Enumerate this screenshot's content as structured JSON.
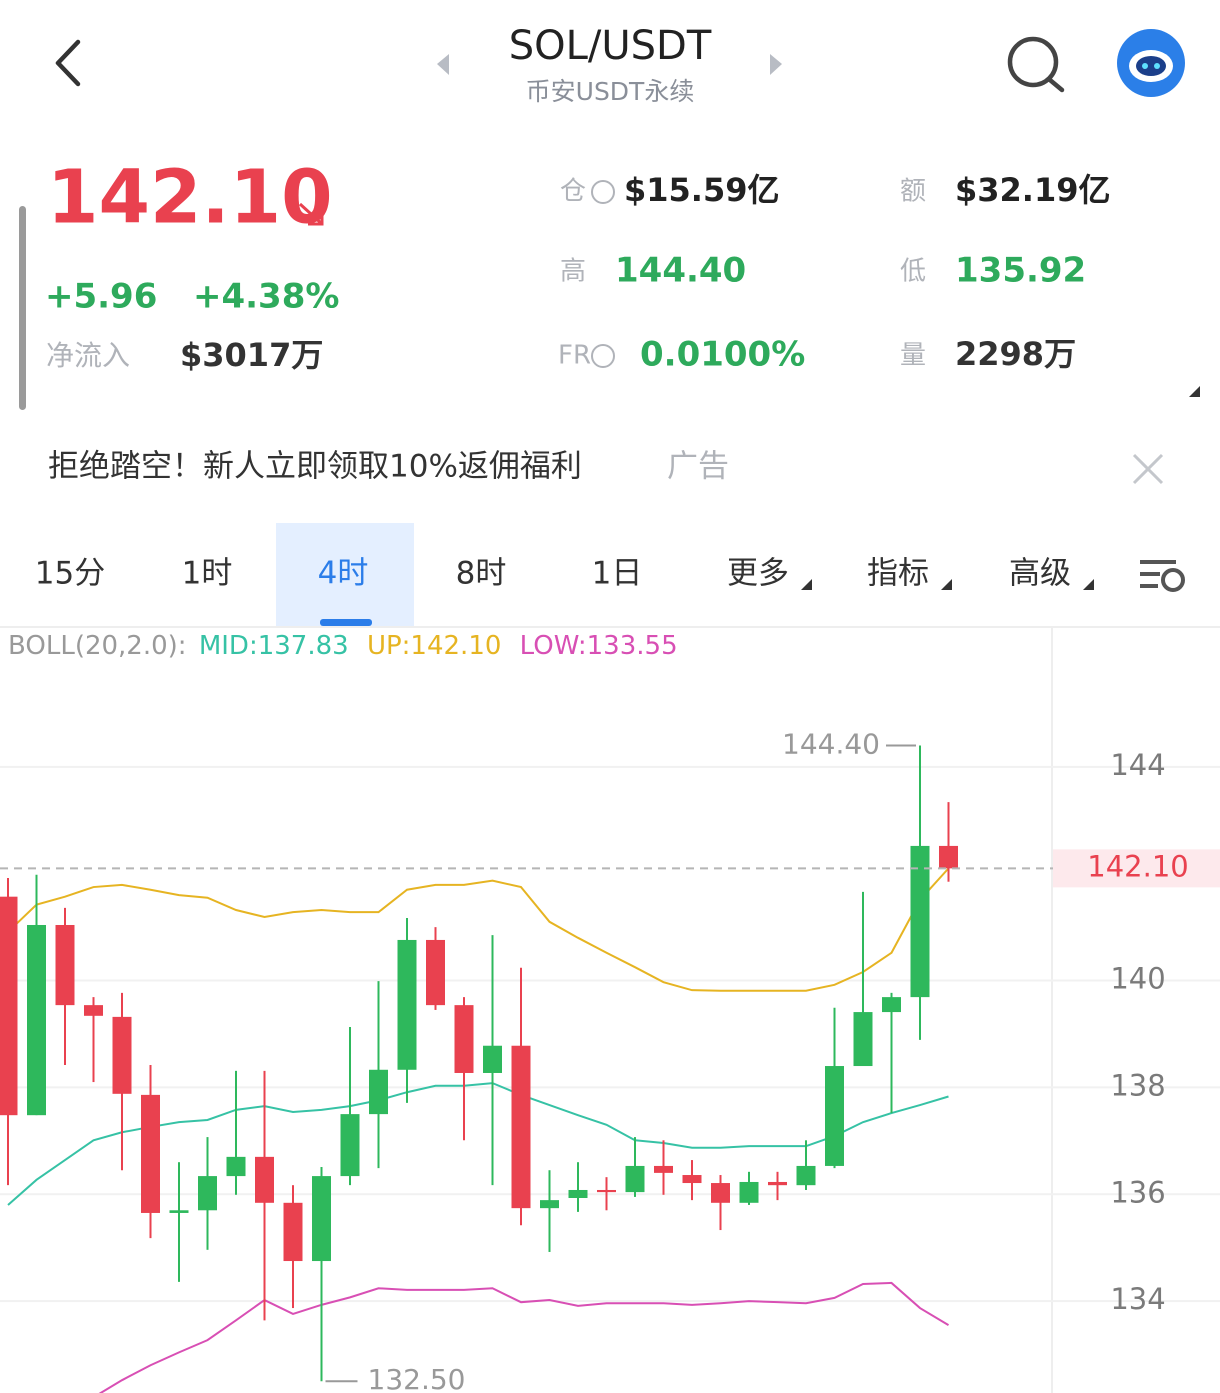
{
  "header": {
    "title": "SOL/USDT",
    "subtitle": "币安USDT永续"
  },
  "ticker": {
    "price": "142.10",
    "change": "+5.96",
    "change_pct": "+4.38%",
    "inflow_label": "净流入",
    "inflow": "$3017万"
  },
  "stats": [
    {
      "label": "仓",
      "value": "$15.59亿"
    },
    {
      "label": "额",
      "value": "$32.19亿"
    },
    {
      "label": "高",
      "value": "144.40"
    },
    {
      "label": "低",
      "value": "135.92"
    },
    {
      "label": "FR",
      "value": "0.0100%"
    },
    {
      "label": "量",
      "value": "2298万"
    }
  ],
  "banner": {
    "text": "拒绝踏空！新人立即领取10%返佣福利",
    "tag": "广告"
  },
  "tabs": [
    "15分",
    "1时",
    "4时",
    "8时",
    "1日",
    "更多",
    "指标",
    "高级"
  ],
  "active_tab": 2,
  "chart_data": {
    "type": "candlestick",
    "indicator": "BOLL(20,2.0):",
    "up_color": "#2eb85c",
    "down_color": "#e9414f",
    "open": [
      141.57,
      137.48,
      141.04,
      139.54,
      139.32,
      137.86,
      135.65,
      135.7,
      136.34,
      136.7,
      135.84,
      134.75,
      136.34,
      137.5,
      138.33,
      140.76,
      139.54,
      138.27,
      138.78,
      135.74,
      135.93,
      136.08,
      136.04,
      136.53,
      136.36,
      136.21,
      135.84,
      136.23,
      136.17,
      136.53,
      138.4,
      139.41,
      139.69,
      142.52
    ],
    "high": [
      141.92,
      141.98,
      141.36,
      139.69,
      139.77,
      138.42,
      136.6,
      137.07,
      138.31,
      138.31,
      136.17,
      136.51,
      139.13,
      139.99,
      141.17,
      141.0,
      139.69,
      140.85,
      140.24,
      136.45,
      136.6,
      136.32,
      137.07,
      137.01,
      136.64,
      136.36,
      136.42,
      136.42,
      137.01,
      139.49,
      141.66,
      139.77,
      144.4,
      143.34
    ],
    "low": [
      136.17,
      137.48,
      138.42,
      138.1,
      136.45,
      135.18,
      134.36,
      134.96,
      135.99,
      133.64,
      133.87,
      132.5,
      136.17,
      136.49,
      137.71,
      139.45,
      137.01,
      136.17,
      135.42,
      134.92,
      135.67,
      135.7,
      135.95,
      135.99,
      135.89,
      135.33,
      135.8,
      135.89,
      136.08,
      136.49,
      138.4,
      137.52,
      138.89,
      141.85
    ],
    "close": [
      137.48,
      141.04,
      139.54,
      139.34,
      137.88,
      135.65,
      135.7,
      136.34,
      136.7,
      135.84,
      134.75,
      136.34,
      137.5,
      138.33,
      140.76,
      139.54,
      138.27,
      138.78,
      135.74,
      135.89,
      136.08,
      136.04,
      136.53,
      136.4,
      136.21,
      135.84,
      136.23,
      136.17,
      136.53,
      138.4,
      139.41,
      139.69,
      142.52,
      142.1
    ],
    "bands": [
      {
        "label": "MID:137.83",
        "color": "#36c2a5",
        "values": [
          135.8,
          136.27,
          136.64,
          137.01,
          137.16,
          137.26,
          137.35,
          137.39,
          137.58,
          137.65,
          137.54,
          137.58,
          137.65,
          137.76,
          137.91,
          138.03,
          138.03,
          138.08,
          137.86,
          137.67,
          137.48,
          137.3,
          137.01,
          136.96,
          136.87,
          136.87,
          136.9,
          136.9,
          136.9,
          137.09,
          137.35,
          137.52,
          137.67,
          137.83
        ]
      },
      {
        "label": "UP:142.10",
        "color": "#e6b422",
        "values": [
          140.91,
          141.42,
          141.57,
          141.75,
          141.79,
          141.7,
          141.6,
          141.55,
          141.32,
          141.19,
          141.28,
          141.32,
          141.28,
          141.28,
          141.7,
          141.79,
          141.79,
          141.87,
          141.75,
          141.1,
          140.8,
          140.52,
          140.25,
          139.97,
          139.82,
          139.81,
          139.81,
          139.81,
          139.81,
          139.92,
          140.16,
          140.52,
          141.51,
          142.1
        ]
      },
      {
        "label": "LOW:133.55",
        "color": "#d84fb4",
        "values": [
          null,
          null,
          null,
          132.2,
          132.52,
          132.8,
          133.04,
          133.27,
          133.64,
          134.02,
          133.76,
          133.93,
          134.07,
          134.24,
          134.21,
          134.21,
          134.21,
          134.24,
          133.98,
          134.02,
          133.91,
          133.96,
          133.96,
          133.96,
          133.93,
          133.96,
          134.0,
          133.98,
          133.96,
          134.06,
          134.32,
          134.34,
          133.87,
          133.55
        ]
      }
    ],
    "ylim": [
      132.28,
      146.0
    ],
    "yticks": [
      134,
      136,
      138,
      140,
      144
    ],
    "grid": true,
    "last_price": {
      "value": 142.1,
      "label": "142.10"
    },
    "high_marker": {
      "value": 144.4,
      "label": "144.40"
    },
    "low_marker": {
      "value": 132.5,
      "label": "132.50"
    }
  }
}
